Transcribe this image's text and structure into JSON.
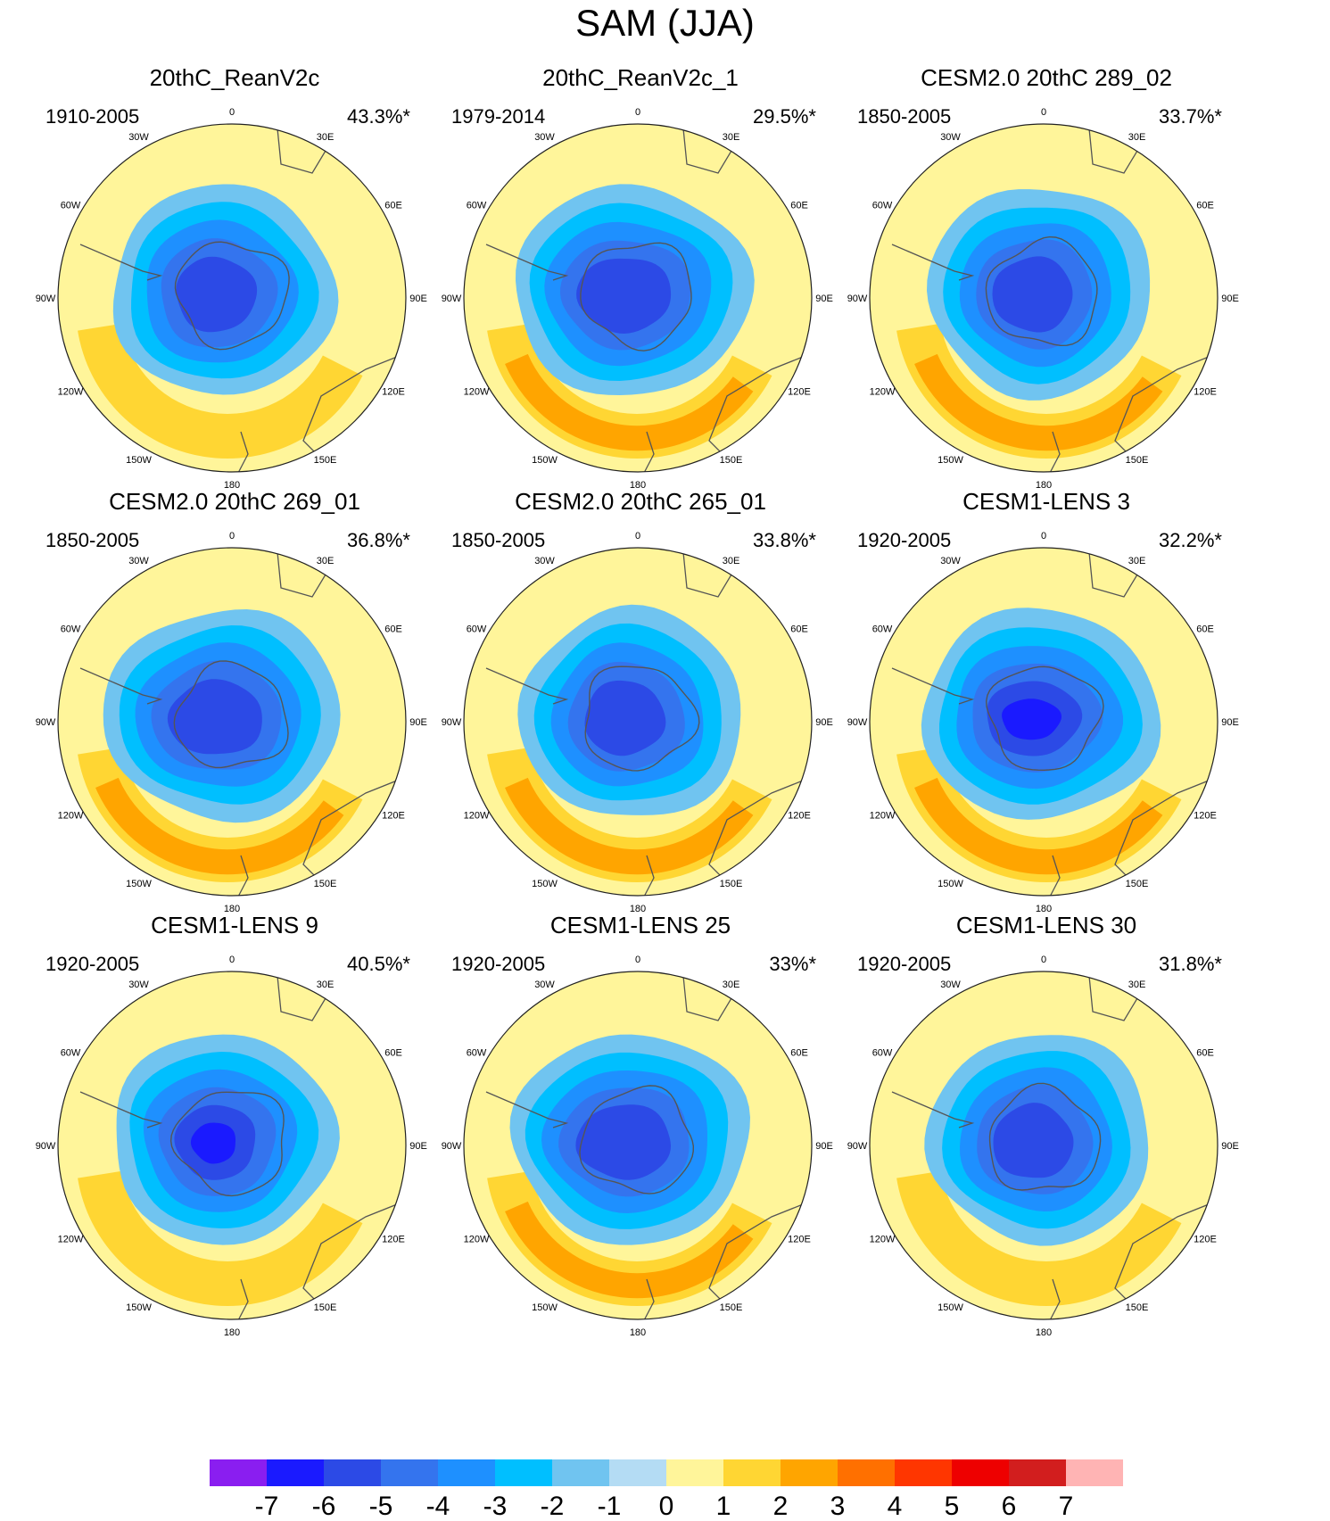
{
  "title": "SAM (JJA)",
  "chart_data": {
    "type": "heatmap",
    "title": "SAM (JJA)",
    "projection": "south-polar-stereographic",
    "longitude_labels": [
      "0",
      "30E",
      "60E",
      "90E",
      "120E",
      "150E",
      "180",
      "150W",
      "120W",
      "90W",
      "60W",
      "30W"
    ],
    "colorbar": {
      "tick_labels": [
        "-7",
        "-6",
        "-5",
        "-4",
        "-3",
        "-2",
        "-1",
        "0",
        "1",
        "2",
        "3",
        "4",
        "5",
        "6",
        "7"
      ],
      "colors": [
        "#8a1ef0",
        "#1a1aff",
        "#2c4ae6",
        "#3474ee",
        "#1e90ff",
        "#00bfff",
        "#70c4f0",
        "#b4dcf4",
        "#fff59a",
        "#ffd633",
        "#ffa500",
        "#ff7000",
        "#ff3600",
        "#ee0000",
        "#d21e1e",
        "#ffb4b4"
      ]
    },
    "panels": [
      {
        "title": "20thC_ReanV2c",
        "period": "1910-2005",
        "variance": "43.3%*",
        "center_min": -5,
        "pos_max": 2
      },
      {
        "title": "20thC_ReanV2c_1",
        "period": "1979-2014",
        "variance": "29.5%*",
        "center_min": -5,
        "pos_max": 3
      },
      {
        "title": "CESM2.0 20thC 289_02",
        "period": "1850-2005",
        "variance": "33.7%*",
        "center_min": -5,
        "pos_max": 3
      },
      {
        "title": "CESM2.0 20thC 269_01",
        "period": "1850-2005",
        "variance": "36.8%*",
        "center_min": -5,
        "pos_max": 3
      },
      {
        "title": "CESM2.0 20thC 265_01",
        "period": "1850-2005",
        "variance": "33.8%*",
        "center_min": -5,
        "pos_max": 3
      },
      {
        "title": "CESM1-LENS 3",
        "period": "1920-2005",
        "variance": "32.2%*",
        "center_min": -6,
        "pos_max": 3
      },
      {
        "title": "CESM1-LENS 9",
        "period": "1920-2005",
        "variance": "40.5%*",
        "center_min": -6,
        "pos_max": 2
      },
      {
        "title": "CESM1-LENS 25",
        "period": "1920-2005",
        "variance": "33%*",
        "center_min": -5,
        "pos_max": 3
      },
      {
        "title": "CESM1-LENS 30",
        "period": "1920-2005",
        "variance": "31.8%*",
        "center_min": -5,
        "pos_max": 2
      }
    ]
  }
}
